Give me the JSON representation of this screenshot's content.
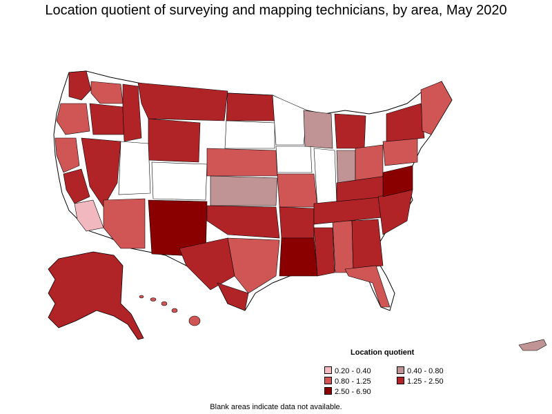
{
  "title": "Location quotient of surveying and mapping technicians, by area, May 2020",
  "legend": {
    "title": "Location quotient",
    "items": [
      {
        "label": "0.20 - 0.40",
        "color": "#f2b8bf"
      },
      {
        "label": "0.40 - 0.80",
        "color": "#c09494"
      },
      {
        "label": "0.80 - 1.25",
        "color": "#d05656"
      },
      {
        "label": "1.25 - 2.50",
        "color": "#b02428"
      },
      {
        "label": "2.50 - 6.90",
        "color": "#8a0000"
      }
    ]
  },
  "footnote": "Blank areas indicate data not available.",
  "colors": {
    "blank": "#ffffff",
    "outline": "#000000"
  }
}
